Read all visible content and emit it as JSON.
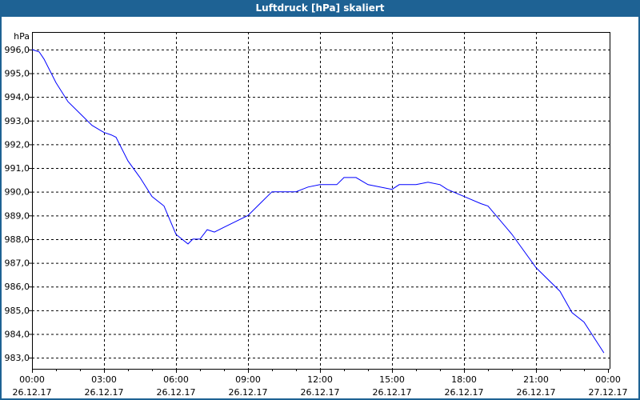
{
  "window": {
    "title": "Luftdruck [hPa] skaliert"
  },
  "chart_data": {
    "type": "line",
    "title": "Luftdruck [hPa] skaliert",
    "ylabel": "hPa",
    "ylim": [
      982.53,
      996.74
    ],
    "xlim": [
      0,
      24
    ],
    "grid": true,
    "line_color": "#0000ff",
    "yticks": [
      996,
      995,
      994,
      993,
      992,
      991,
      990,
      989,
      988,
      987,
      986,
      985,
      984,
      983
    ],
    "ytick_labels": [
      "996,0",
      "995,0",
      "994,0",
      "993,0",
      "992,0",
      "991,0",
      "990,0",
      "989,0",
      "988,0",
      "987,0",
      "986,0",
      "985,0",
      "984,0",
      "983,0"
    ],
    "xticks": [
      0,
      3,
      6,
      9,
      12,
      15,
      18,
      21,
      24
    ],
    "xtick_labels": [
      [
        "00:00",
        "26.12.17"
      ],
      [
        "03:00",
        "26.12.17"
      ],
      [
        "06:00",
        "26.12.17"
      ],
      [
        "09:00",
        "26.12.17"
      ],
      [
        "12:00",
        "26.12.17"
      ],
      [
        "15:00",
        "26.12.17"
      ],
      [
        "18:00",
        "26.12.17"
      ],
      [
        "21:00",
        "26.12.17"
      ],
      [
        "00:00",
        "27.12.17"
      ]
    ],
    "x_unit": "hours since 26.12.17 00:00",
    "series": [
      {
        "x": [
          0,
          0.3,
          0.5,
          1,
          1.5,
          2,
          2.5,
          3,
          3.3,
          3.5,
          4,
          4.5,
          5,
          5.5,
          6,
          6.5,
          6.7,
          7,
          7.3,
          7.6,
          8,
          9,
          9.5,
          10,
          10.3,
          11,
          11.5,
          12,
          12.7,
          13,
          13.5,
          14,
          15,
          15.3,
          16,
          16.5,
          17,
          17.3,
          18,
          18.7,
          19,
          20,
          21,
          22,
          22.5,
          23,
          23.83
        ],
        "y": [
          996.0,
          995.9,
          995.6,
          994.6,
          993.8,
          993.3,
          992.8,
          992.5,
          992.4,
          992.3,
          991.3,
          990.6,
          989.8,
          989.4,
          988.2,
          987.8,
          988.0,
          988.0,
          988.4,
          988.3,
          988.5,
          989.0,
          989.5,
          990.0,
          990.0,
          990.0,
          990.2,
          990.3,
          990.3,
          990.6,
          990.6,
          990.3,
          990.1,
          990.3,
          990.3,
          990.4,
          990.3,
          990.1,
          989.8,
          989.5,
          989.4,
          988.2,
          986.8,
          985.8,
          984.9,
          984.5,
          983.2
        ]
      }
    ]
  }
}
